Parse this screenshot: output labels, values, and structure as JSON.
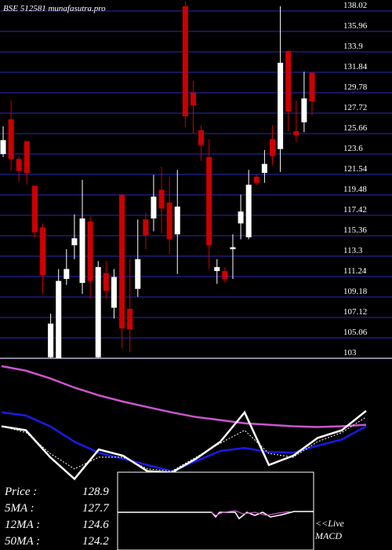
{
  "chart_data": {
    "type": "candlestick",
    "title": "BSE 512581 munafasutra.pro",
    "open": [
      123.6,
      127.1,
      123.1,
      124.9,
      120.4,
      116.2,
      103.1,
      103.0,
      111.0,
      114.4,
      110.6,
      116.8,
      103.1,
      111.6,
      108.1,
      119.5,
      108.0,
      110.0,
      117.0,
      117.1,
      120.0,
      118.7,
      115.5,
      138.5,
      129.8,
      126.0,
      123.3,
      111.8,
      111.8,
      114.0,
      116.6,
      115.2,
      121.3,
      121.7,
      125.1,
      124.1,
      134.0,
      125.9,
      126.8,
      131.8
    ],
    "high": [
      126.4,
      129.0,
      123.4,
      124.9,
      120.4,
      116.6,
      107.5,
      112.0,
      114.0,
      117.5,
      121.0,
      117.3,
      112.8,
      112.8,
      112.0,
      119.5,
      113.0,
      117.0,
      117.7,
      121.5,
      122.3,
      121.3,
      122.0,
      139.0,
      131.0,
      126.5,
      125.1,
      113.0,
      112.2,
      115.5,
      119.5,
      122.0,
      121.5,
      124.0,
      126.5,
      138.5,
      134.0,
      129.0,
      131.9,
      131.9
    ],
    "low": [
      123.3,
      121.9,
      120.8,
      120.5,
      115.2,
      109.5,
      103.0,
      103.0,
      110.4,
      113.0,
      109.5,
      109.0,
      103.0,
      109.0,
      107.0,
      104.0,
      103.6,
      109.2,
      114.0,
      115.8,
      115.6,
      113.5,
      111.5,
      126.3,
      125.7,
      122.9,
      112.0,
      110.5,
      110.6,
      111.0,
      115.0,
      115.0,
      120.5,
      120.7,
      122.5,
      121.8,
      125.9,
      124.8,
      125.8,
      127.5
    ],
    "close": [
      125.0,
      123.1,
      121.9,
      121.7,
      115.7,
      111.4,
      106.5,
      110.8,
      112.0,
      115.1,
      117.1,
      110.8,
      112.2,
      109.8,
      111.2,
      106.0,
      105.9,
      113.0,
      115.4,
      119.3,
      118.1,
      115.0,
      118.3,
      127.4,
      128.5,
      124.5,
      114.4,
      112.2,
      111.0,
      114.2,
      117.8,
      120.5,
      120.7,
      122.6,
      123.4,
      132.8,
      127.9,
      125.5,
      129.2,
      128.9
    ],
    "colors": {
      "up": "#ffffff",
      "down": "#cc0000",
      "grid": "#1c1c7a"
    },
    "ylim": [
      103,
      139.13
    ],
    "yticks": [
      138.02,
      135.96,
      133.9,
      131.84,
      129.78,
      127.72,
      125.66,
      123.6,
      121.54,
      119.48,
      117.42,
      115.36,
      113.3,
      111.24,
      109.18,
      107.12,
      105.06,
      103
    ],
    "grid": true,
    "lower_panel": {
      "ylim": [
        0,
        100
      ],
      "series": [
        {
          "name": "50MA",
          "color": "#cc55cc",
          "values": [
            97.5,
            95.1,
            91.0,
            86.1,
            82.0,
            78.7,
            75.8,
            73.0,
            70.5,
            68.9,
            67.2,
            66.4,
            65.6,
            65.2,
            65.6,
            66.4
          ]
        },
        {
          "name": "12MA",
          "color": "#1a1ae6",
          "values": [
            73.0,
            71.3,
            65.6,
            57.4,
            51.6,
            48.4,
            45.1,
            41.8,
            47.1,
            52.5,
            54.1,
            52.0,
            51.6,
            55.3,
            58.6,
            65.6
          ]
        },
        {
          "name": "5MA",
          "color": "#ffffff",
          "dashed": true,
          "values": [
            65.6,
            62.3,
            51.2,
            43.0,
            49.2,
            49.2,
            43.0,
            41.8,
            49.2,
            56.6,
            63.5,
            51.2,
            49.2,
            57.4,
            62.3,
            70.5
          ]
        },
        {
          "name": "Price",
          "color": "#ffffff",
          "values": [
            65.6,
            63.5,
            49.2,
            37.7,
            53.3,
            50.0,
            41.8,
            41.0,
            48.4,
            57.4,
            73.0,
            45.1,
            50.0,
            59.4,
            63.5,
            73.8
          ]
        }
      ]
    },
    "stats": [
      {
        "label": "Price  :",
        "value": 128.9
      },
      {
        "label": "5MA :",
        "value": 127.7
      },
      {
        "label": "12MA :",
        "value": 124.6
      },
      {
        "label": "50MA :",
        "value": 124.2
      }
    ],
    "macd_label": [
      "<<Live",
      "MACD"
    ]
  }
}
